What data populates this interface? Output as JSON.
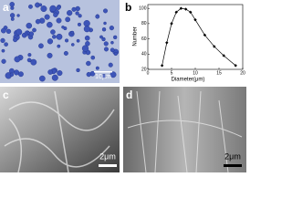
{
  "panels": [
    {
      "label": "a",
      "scale_bar": "10μm"
    },
    {
      "label": "b"
    },
    {
      "label": "c",
      "scale_bar": "2μm"
    },
    {
      "label": "d",
      "scale_bar": "2μm"
    }
  ],
  "chart_data": {
    "type": "line",
    "x_label": "Diameter(μm)",
    "y_label": "Number",
    "x": [
      3,
      4,
      5,
      6,
      7,
      8,
      9,
      10,
      12,
      14,
      16,
      18.5
    ],
    "values": [
      25,
      55,
      80,
      95,
      100,
      99,
      95,
      85,
      65,
      50,
      38,
      25
    ],
    "color": "#000000",
    "xlim": [
      0,
      20
    ],
    "xticks": [
      0,
      5,
      10,
      15,
      20
    ],
    "ylim": [
      20,
      105
    ],
    "yticks": [
      20,
      40,
      60,
      80,
      100
    ]
  }
}
